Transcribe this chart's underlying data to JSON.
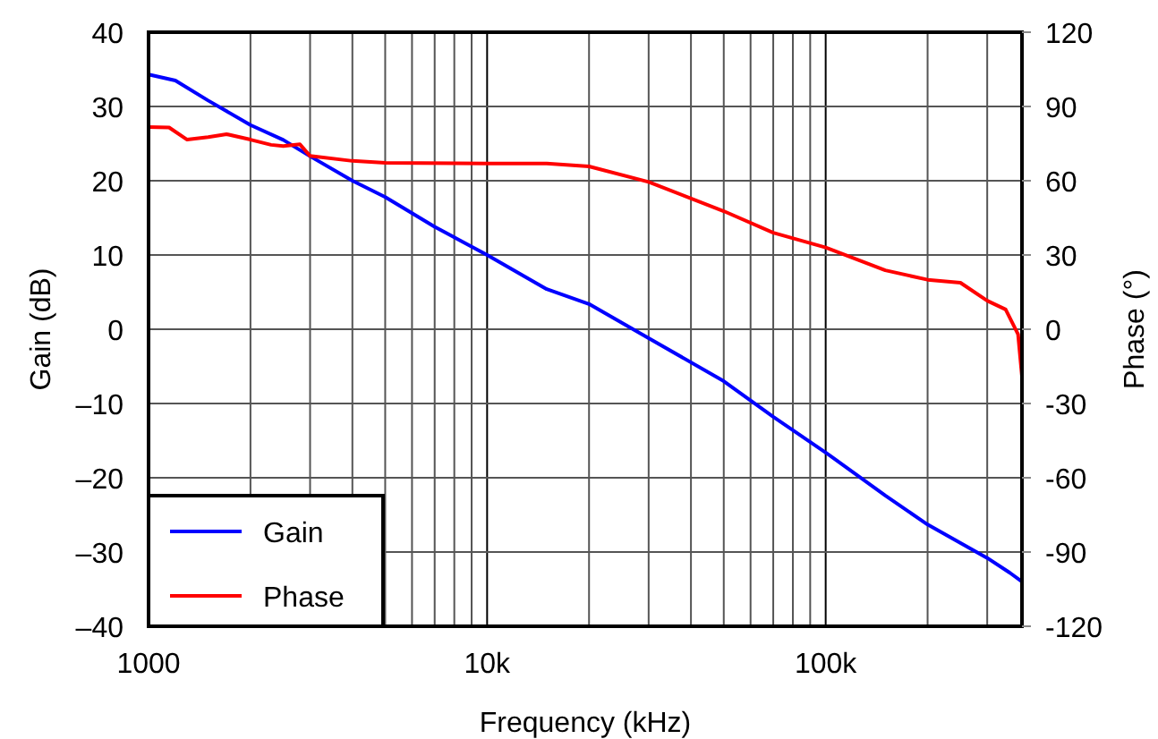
{
  "chart_data": {
    "type": "line",
    "xlabel": "Frequency (kHz)",
    "ylabel": "Gain (dB)",
    "y2label": "Phase (°)",
    "log": "x",
    "grid": true,
    "legend": "bottom left",
    "marker": "none",
    "line_style": "solid",
    "xlim": [
      1000,
      380000
    ],
    "xticks": [
      {
        "value": 1000,
        "label": "1000"
      },
      {
        "value": 2000,
        "label": null
      },
      {
        "value": 3000,
        "label": null
      },
      {
        "value": 4000,
        "label": null
      },
      {
        "value": 5000,
        "label": null
      },
      {
        "value": 6000,
        "label": null
      },
      {
        "value": 7000,
        "label": null
      },
      {
        "value": 8000,
        "label": null
      },
      {
        "value": 9000,
        "label": null
      },
      {
        "value": 10000,
        "label": "10k"
      },
      {
        "value": 20000,
        "label": null
      },
      {
        "value": 30000,
        "label": null
      },
      {
        "value": 40000,
        "label": null
      },
      {
        "value": 50000,
        "label": null
      },
      {
        "value": 60000,
        "label": null
      },
      {
        "value": 70000,
        "label": null
      },
      {
        "value": 80000,
        "label": null
      },
      {
        "value": 90000,
        "label": null
      },
      {
        "value": 100000,
        "label": "100k"
      },
      {
        "value": 200000,
        "label": null
      },
      {
        "value": 300000,
        "label": null
      }
    ],
    "ylim": [
      -40,
      40
    ],
    "yticks": [
      {
        "value": -40,
        "label": "–40"
      },
      {
        "value": -30,
        "label": "–30"
      },
      {
        "value": -20,
        "label": "–20"
      },
      {
        "value": -10,
        "label": "–10"
      },
      0,
      10,
      20,
      30,
      40
    ],
    "y2lim": [
      -120,
      120
    ],
    "y2ticks": [
      -120,
      -90,
      -60,
      -30,
      0,
      30,
      60,
      90,
      120
    ],
    "series": [
      {
        "name": "Gain",
        "color": "#0000ff",
        "x": [
          1000,
          1200,
          1500,
          2000,
          2500,
          3000,
          4000,
          5000,
          7000,
          10000,
          15000,
          20000,
          30000,
          50000,
          70000,
          100000,
          150000,
          200000,
          300000,
          350000,
          380000
        ],
        "values": [
          34.3,
          33.5,
          30.8,
          27.5,
          25.5,
          23.3,
          20,
          17.8,
          13.8,
          10,
          5.4,
          3.4,
          -1.2,
          -7,
          -11.8,
          -16.6,
          -22.4,
          -26.3,
          -30.8,
          -32.8,
          -34
        ]
      },
      {
        "name": "Phase",
        "color": "#ff0000",
        "axis": "y2",
        "x": [
          1000,
          1150,
          1300,
          1500,
          1700,
          2000,
          2300,
          2500,
          2800,
          3000,
          4000,
          5000,
          10000,
          15000,
          20000,
          30000,
          50000,
          70000,
          100000,
          150000,
          200000,
          250000,
          300000,
          340000,
          370000,
          380000
        ],
        "values": [
          81.7,
          81.5,
          76.6,
          77.6,
          78.8,
          76.6,
          74.5,
          74,
          74.7,
          70,
          68,
          67.2,
          67,
          67,
          65.8,
          59.5,
          47.7,
          39,
          33,
          23.8,
          20,
          18.8,
          11.5,
          8,
          -2,
          -19
        ]
      }
    ]
  }
}
